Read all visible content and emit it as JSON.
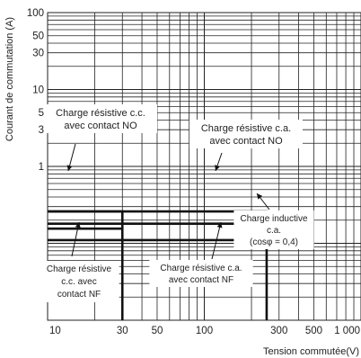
{
  "chart_data": {
    "type": "line",
    "title": "",
    "xlabel": "Tension commutée(V)",
    "ylabel": "Courant de commutation (A)",
    "x_scale": "log",
    "y_scale": "log",
    "xlim": [
      10,
      1000
    ],
    "ylim": [
      0.01,
      100
    ],
    "grid": true,
    "x_ticks": [
      {
        "value": 10,
        "label": "10"
      },
      {
        "value": 30,
        "label": "30"
      },
      {
        "value": 50,
        "label": "50"
      },
      {
        "value": 100,
        "label": "100"
      },
      {
        "value": 300,
        "label": "300"
      },
      {
        "value": 500,
        "label": "500"
      },
      {
        "value": 1000,
        "label": "1 000"
      }
    ],
    "y_ticks": [
      {
        "value": 100,
        "label": "100"
      },
      {
        "value": 50,
        "label": "50"
      },
      {
        "value": 30,
        "label": "30"
      },
      {
        "value": 10,
        "label": "10"
      },
      {
        "value": 5,
        "label": "5"
      },
      {
        "value": 3,
        "label": "3"
      },
      {
        "value": 1,
        "label": "1"
      }
    ],
    "series": [
      {
        "name": "Charge résistive c.c. avec contact NO",
        "x": [
          10,
          30,
          30
        ],
        "y": [
          0.26,
          0.26,
          0.01
        ]
      },
      {
        "name": "Charge résistive c.a. avec contact NO",
        "x": [
          10,
          250,
          250
        ],
        "y": [
          0.26,
          0.26,
          0.01
        ]
      },
      {
        "name": "Charge inductive c.a. (cosφ = 0,4)",
        "x": [
          10,
          250
        ],
        "y": [
          0.18,
          0.18
        ]
      },
      {
        "name": "Charge résistive c.c. avec contact NF",
        "x": [
          10,
          30
        ],
        "y": [
          0.155,
          0.155
        ]
      },
      {
        "name": "Charge résistive c.a. avec contact NF",
        "x": [
          10,
          250
        ],
        "y": [
          0.11,
          0.11
        ]
      }
    ],
    "annotations": {
      "a1": {
        "lines": [
          "Charge résistive c.c.",
          "avec contact NO"
        ]
      },
      "a2": {
        "lines": [
          "Charge résistive c.a.",
          "avec contact NO"
        ]
      },
      "a3": {
        "lines": [
          "Charge inductive",
          "c.a.",
          "(cosφ = 0,4)"
        ]
      },
      "a4": {
        "lines": [
          "Charge résistive",
          "c.c. avec",
          "contact NF"
        ]
      },
      "a5": {
        "lines": [
          "Charge résistive c.a.",
          "avec contact NF"
        ]
      }
    }
  }
}
